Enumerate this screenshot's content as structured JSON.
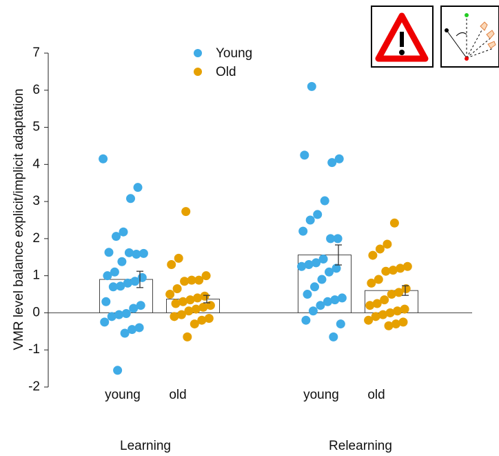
{
  "chart_data": {
    "type": "bar",
    "ylabel": "VMR level balance explicit/implicit adaptation",
    "categories": [
      "Learning",
      "Relearning"
    ],
    "subcategories": [
      "young",
      "old"
    ],
    "ylim": [
      -2,
      7
    ],
    "yticks": [
      -2,
      -1,
      0,
      1,
      2,
      3,
      4,
      5,
      6,
      7
    ],
    "series": [
      {
        "name": "Young",
        "color": "#3fabe6",
        "values": [
          0.9,
          1.56
        ],
        "errors": [
          0.22,
          0.27
        ],
        "points": [
          [
            4.15,
            3.38,
            3.08,
            2.18,
            2.06,
            1.63,
            1.6,
            1.58,
            1.62,
            1.38,
            1.1,
            1.0,
            0.95,
            0.85,
            0.8,
            0.72,
            0.7,
            0.3,
            0.2,
            0.12,
            -0.02,
            -0.05,
            -0.1,
            -0.25,
            -0.4,
            -0.45,
            -0.55,
            -1.55
          ],
          [
            6.1,
            4.25,
            4.15,
            4.05,
            3.02,
            2.65,
            2.5,
            2.2,
            2.0,
            2.0,
            1.45,
            1.35,
            1.3,
            1.25,
            1.2,
            1.1,
            0.9,
            0.7,
            0.5,
            0.4,
            0.35,
            0.3,
            0.2,
            0.05,
            -0.2,
            -0.3,
            -0.65
          ]
        ]
      },
      {
        "name": "Old",
        "color": "#e6a000",
        "values": [
          0.37,
          0.6
        ],
        "errors": [
          0.1,
          0.13
        ],
        "points": [
          [
            2.73,
            1.47,
            1.3,
            1.0,
            0.88,
            0.88,
            0.85,
            0.65,
            0.5,
            0.45,
            0.4,
            0.35,
            0.3,
            0.25,
            0.2,
            0.15,
            0.1,
            0.05,
            -0.05,
            -0.1,
            -0.15,
            -0.2,
            -0.3,
            -0.65
          ],
          [
            2.42,
            1.85,
            1.72,
            1.55,
            1.25,
            1.2,
            1.15,
            1.12,
            0.9,
            0.8,
            0.65,
            0.55,
            0.5,
            0.35,
            0.25,
            0.2,
            0.1,
            0.05,
            0.0,
            -0.05,
            -0.1,
            -0.2,
            -0.25,
            -0.3,
            -0.35
          ]
        ]
      }
    ]
  }
}
